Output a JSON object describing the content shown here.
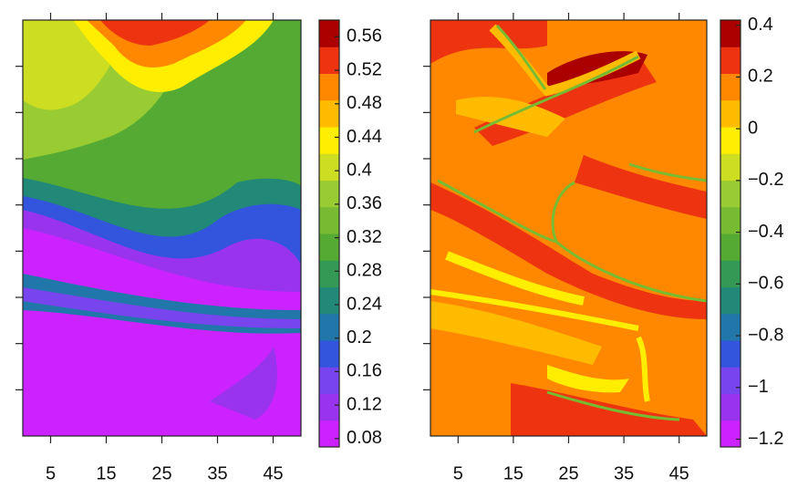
{
  "chart_data": [
    {
      "type": "contour",
      "xlim": [
        0,
        50
      ],
      "xticks": [
        5,
        15,
        25,
        35,
        45
      ],
      "clim": [
        0.07,
        0.58
      ],
      "cticks": [
        0.08,
        0.12,
        0.16,
        0.2,
        0.24,
        0.28,
        0.32,
        0.36,
        0.4,
        0.44,
        0.48,
        0.52,
        0.56
      ],
      "colors": [
        "#cc22ff",
        "#9933ee",
        "#7744ee",
        "#3355dd",
        "#2277aa",
        "#228877",
        "#339955",
        "#55aa33",
        "#77bb33",
        "#99cc33",
        "#ccdd22",
        "#ffee00",
        "#ffbb00",
        "#ff8800",
        "#ee3311",
        "#aa0000"
      ]
    },
    {
      "type": "contour",
      "xlim": [
        0,
        50
      ],
      "xticks": [
        5,
        15,
        25,
        35,
        45
      ],
      "clim": [
        -1.23,
        0.42
      ],
      "cticks": [
        {
          "value": -1.2,
          "label": "−1.2"
        },
        {
          "value": -1,
          "label": "−1"
        },
        {
          "value": -0.8,
          "label": "−0.8"
        },
        {
          "value": -0.6,
          "label": "−0.6"
        },
        {
          "value": -0.4,
          "label": "−0.4"
        },
        {
          "value": -0.2,
          "label": "−0.2"
        },
        0,
        0.2,
        0.4
      ],
      "colors": [
        "#cc22ff",
        "#9933ee",
        "#7744ee",
        "#3355dd",
        "#2277aa",
        "#228877",
        "#339955",
        "#55aa33",
        "#77bb33",
        "#99cc33",
        "#ccdd22",
        "#ffee00",
        "#ffbb00",
        "#ff8800",
        "#ee3311",
        "#aa0000"
      ]
    }
  ]
}
